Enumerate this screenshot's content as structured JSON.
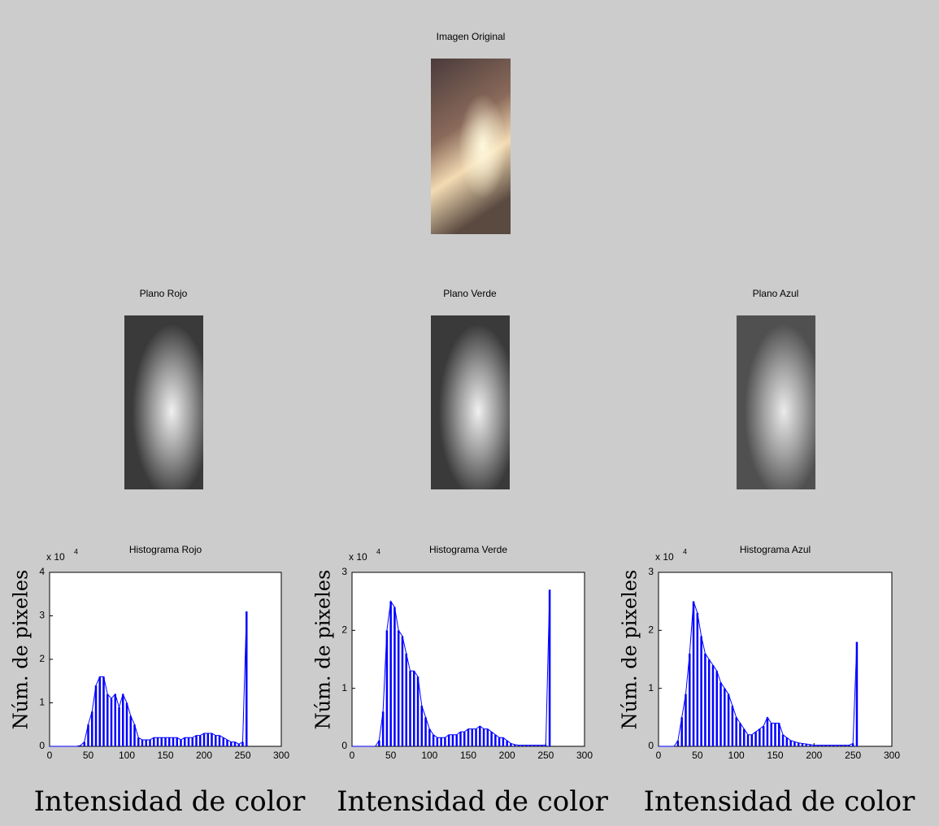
{
  "images": [
    {
      "title": "Imagen Original"
    },
    {
      "title": "Plano Rojo"
    },
    {
      "title": "Plano Verde"
    },
    {
      "title": "Plano Azul"
    }
  ],
  "chart_data": [
    {
      "type": "histogram",
      "title": "Histograma Rojo",
      "y_label": "Núm. de pixeles",
      "x_label": "Intensidad de color",
      "y_scale_base": "x 10",
      "y_scale_exponent": "4",
      "color": "#0000ff",
      "x": [
        0,
        5,
        10,
        15,
        20,
        25,
        30,
        35,
        40,
        45,
        50,
        55,
        60,
        65,
        70,
        75,
        80,
        85,
        90,
        95,
        100,
        105,
        110,
        115,
        120,
        125,
        130,
        135,
        140,
        145,
        150,
        155,
        160,
        165,
        170,
        175,
        180,
        185,
        190,
        195,
        200,
        205,
        210,
        215,
        220,
        225,
        230,
        235,
        240,
        245,
        250,
        255
      ],
      "values": [
        0,
        0,
        0,
        0,
        0,
        0,
        0,
        0,
        0.02,
        0.1,
        0.5,
        0.8,
        1.4,
        1.6,
        1.6,
        1.2,
        1.1,
        1.2,
        0.9,
        1.2,
        1.0,
        0.7,
        0.5,
        0.2,
        0.15,
        0.15,
        0.15,
        0.2,
        0.2,
        0.2,
        0.2,
        0.2,
        0.2,
        0.2,
        0.15,
        0.2,
        0.2,
        0.2,
        0.25,
        0.25,
        0.3,
        0.3,
        0.3,
        0.25,
        0.25,
        0.2,
        0.15,
        0.1,
        0.1,
        0.05,
        0.1,
        3.1
      ],
      "xlim": [
        0,
        300
      ],
      "xticks": [
        0,
        50,
        100,
        150,
        200,
        250,
        300
      ],
      "ylim": [
        0,
        4
      ],
      "yticks": [
        0,
        1,
        2,
        3,
        4
      ]
    },
    {
      "type": "histogram",
      "title": "Histograma Verde",
      "y_label": "Núm. de pixeles",
      "x_label": "Intensidad de color",
      "y_scale_base": "x 10",
      "y_scale_exponent": "4",
      "color": "#0000ff",
      "x": [
        0,
        5,
        10,
        15,
        20,
        25,
        30,
        35,
        40,
        45,
        50,
        55,
        60,
        65,
        70,
        75,
        80,
        85,
        90,
        95,
        100,
        105,
        110,
        115,
        120,
        125,
        130,
        135,
        140,
        145,
        150,
        155,
        160,
        165,
        170,
        175,
        180,
        185,
        190,
        195,
        200,
        205,
        210,
        215,
        220,
        225,
        230,
        235,
        240,
        245,
        250,
        255
      ],
      "values": [
        0,
        0,
        0,
        0,
        0,
        0,
        0,
        0.1,
        0.6,
        2.0,
        2.5,
        2.4,
        2.0,
        1.9,
        1.6,
        1.3,
        1.3,
        1.2,
        0.7,
        0.5,
        0.3,
        0.2,
        0.15,
        0.15,
        0.15,
        0.2,
        0.2,
        0.2,
        0.25,
        0.25,
        0.3,
        0.3,
        0.3,
        0.35,
        0.3,
        0.3,
        0.25,
        0.2,
        0.15,
        0.15,
        0.1,
        0.05,
        0.03,
        0.02,
        0.02,
        0.02,
        0.02,
        0.02,
        0.02,
        0.02,
        0.02,
        2.7
      ],
      "xlim": [
        0,
        300
      ],
      "xticks": [
        0,
        50,
        100,
        150,
        200,
        250,
        300
      ],
      "ylim": [
        0,
        3
      ],
      "yticks": [
        0,
        1,
        2,
        3
      ]
    },
    {
      "type": "histogram",
      "title": "Histograma Azul",
      "y_label": "Núm. de pixeles",
      "x_label": "Intensidad de color",
      "y_scale_base": "x 10",
      "y_scale_exponent": "4",
      "color": "#0000ff",
      "x": [
        0,
        5,
        10,
        15,
        20,
        25,
        30,
        35,
        40,
        45,
        50,
        55,
        60,
        65,
        70,
        75,
        80,
        85,
        90,
        95,
        100,
        105,
        110,
        115,
        120,
        125,
        130,
        135,
        140,
        145,
        150,
        155,
        160,
        165,
        170,
        175,
        180,
        185,
        190,
        195,
        200,
        205,
        210,
        215,
        220,
        225,
        230,
        235,
        240,
        245,
        250,
        255
      ],
      "values": [
        0,
        0,
        0,
        0,
        0,
        0.1,
        0.5,
        0.9,
        1.6,
        2.5,
        2.3,
        1.9,
        1.6,
        1.5,
        1.4,
        1.3,
        1.1,
        1.0,
        0.9,
        0.7,
        0.5,
        0.4,
        0.3,
        0.2,
        0.2,
        0.25,
        0.3,
        0.35,
        0.5,
        0.4,
        0.4,
        0.4,
        0.2,
        0.15,
        0.1,
        0.08,
        0.06,
        0.05,
        0.04,
        0.03,
        0.02,
        0.02,
        0.02,
        0.02,
        0.02,
        0.02,
        0.02,
        0.02,
        0.02,
        0.02,
        0.05,
        1.8
      ],
      "xlim": [
        0,
        300
      ],
      "xticks": [
        0,
        50,
        100,
        150,
        200,
        250,
        300
      ],
      "ylim": [
        0,
        3
      ],
      "yticks": [
        0,
        1,
        2,
        3
      ]
    }
  ]
}
